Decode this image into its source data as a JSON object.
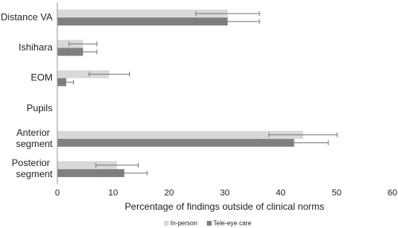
{
  "chart_data": {
    "type": "bar",
    "orientation": "horizontal",
    "x_label": "Percentage of findings outside of clinical norms",
    "categories": [
      "Distance VA",
      "Ishihara",
      "EOM",
      "Pupils",
      "Anterior segment",
      "Posterior segment"
    ],
    "series": [
      {
        "name": "In-person",
        "color": "#d9d9d9",
        "values": [
          30.5,
          4.6,
          9.3,
          0,
          44.0,
          10.7
        ],
        "errors": [
          5.7,
          2.5,
          3.6,
          0,
          6.1,
          3.8
        ]
      },
      {
        "name": "Tele-eye care",
        "color": "#808080",
        "values": [
          30.5,
          4.6,
          1.6,
          0,
          42.4,
          12.0
        ],
        "errors": [
          5.7,
          2.5,
          1.3,
          0,
          6.1,
          4.1
        ]
      }
    ],
    "xlim": [
      0,
      60
    ],
    "xticks": [
      0,
      10,
      20,
      30,
      40,
      50,
      60
    ],
    "legend": "bottom",
    "grid": false
  }
}
